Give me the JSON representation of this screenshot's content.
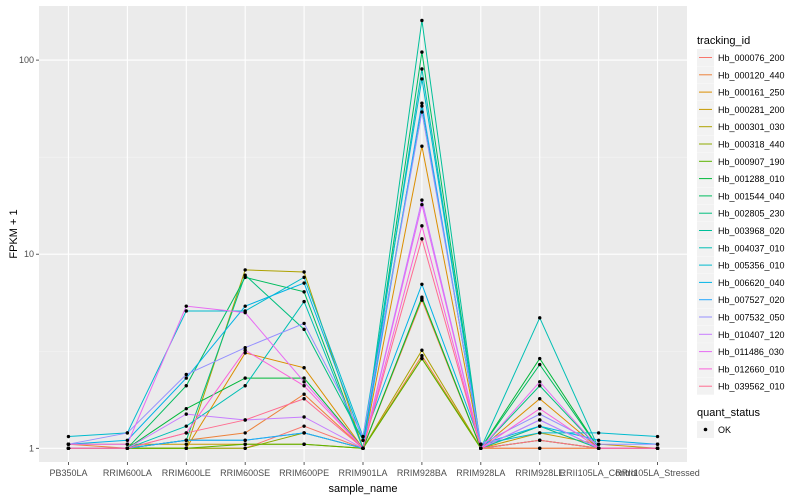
{
  "chart_data": {
    "type": "line",
    "xlabel": "sample_name",
    "ylabel": "FPKM + 1",
    "y_scale": "log10",
    "ylim": [
      0.85,
      190
    ],
    "y_ticks": [
      1,
      10,
      100
    ],
    "y_tick_labels": [
      "1",
      "10",
      "100"
    ],
    "grid": true,
    "legend_position": "right",
    "categories": [
      "PB350LA",
      "RRIM600LA",
      "RRIM600LE",
      "RRIM600SE",
      "RRIM600PE",
      "RRIM901LA",
      "RRIM928BA",
      "RRIM928LA",
      "RRIM928LE",
      "RRII105LA_Control",
      "RRII105LA_Stressed"
    ],
    "series": [
      {
        "name": "Hb_000076_200",
        "color": "#F8766D",
        "values": [
          1.0,
          1.0,
          1.0,
          1.0,
          1.3,
          1.0,
          5.8,
          1.0,
          1.0,
          1.0,
          1.0
        ]
      },
      {
        "name": "Hb_000120_440",
        "color": "#EC823C",
        "values": [
          1.05,
          1.0,
          1.1,
          1.2,
          1.9,
          1.0,
          3.0,
          1.0,
          1.0,
          1.0,
          1.0
        ]
      },
      {
        "name": "Hb_000161_250",
        "color": "#DB8E00",
        "values": [
          1.0,
          1.0,
          1.0,
          3.1,
          2.6,
          1.0,
          36.0,
          1.0,
          1.8,
          1.0,
          1.0
        ]
      },
      {
        "name": "Hb_000281_200",
        "color": "#C59900",
        "values": [
          1.05,
          1.05,
          1.05,
          1.05,
          1.05,
          1.0,
          5.9,
          1.0,
          1.2,
          1.05,
          1.0
        ]
      },
      {
        "name": "Hb_000301_030",
        "color": "#AEA200",
        "values": [
          1.0,
          1.0,
          1.0,
          8.3,
          8.1,
          1.0,
          3.2,
          1.0,
          1.3,
          1.0,
          1.0
        ]
      },
      {
        "name": "Hb_000318_440",
        "color": "#8DAA00",
        "values": [
          1.0,
          1.0,
          1.0,
          1.0,
          1.2,
          1.0,
          2.9,
          1.0,
          1.1,
          1.0,
          1.0
        ]
      },
      {
        "name": "Hb_000907_190",
        "color": "#5BB300",
        "values": [
          1.0,
          1.0,
          1.0,
          1.05,
          1.05,
          1.0,
          2.9,
          1.0,
          1.1,
          1.0,
          1.0
        ]
      },
      {
        "name": "Hb_001288_010",
        "color": "#00B83A",
        "values": [
          1.0,
          1.0,
          1.6,
          2.3,
          2.3,
          1.0,
          6.0,
          1.0,
          2.9,
          1.0,
          1.0
        ]
      },
      {
        "name": "Hb_001544_040",
        "color": "#00BC5E",
        "values": [
          1.0,
          1.0,
          2.1,
          7.6,
          6.4,
          1.0,
          110.0,
          1.0,
          2.7,
          1.0,
          1.0
        ]
      },
      {
        "name": "Hb_002805_230",
        "color": "#00BF7D",
        "values": [
          1.0,
          1.0,
          1.1,
          7.8,
          4.1,
          1.1,
          58.0,
          1.0,
          2.1,
          1.0,
          1.0
        ]
      },
      {
        "name": "Hb_003968_020",
        "color": "#00C09A",
        "values": [
          1.0,
          1.0,
          1.1,
          1.1,
          1.2,
          1.0,
          160.0,
          1.0,
          1.3,
          1.0,
          1.0
        ]
      },
      {
        "name": "Hb_004037_010",
        "color": "#00BFB4",
        "values": [
          1.0,
          1.0,
          1.3,
          2.1,
          5.7,
          1.0,
          90.0,
          1.0,
          4.7,
          1.0,
          1.0
        ]
      },
      {
        "name": "Hb_005356_010",
        "color": "#00BBCE",
        "values": [
          1.15,
          1.2,
          5.1,
          5.1,
          7.6,
          1.15,
          80.0,
          1.05,
          1.2,
          1.2,
          1.15
        ]
      },
      {
        "name": "Hb_006620_040",
        "color": "#00B3E6",
        "values": [
          1.05,
          1.1,
          2.3,
          5.4,
          7.1,
          1.1,
          7.0,
          1.05,
          1.3,
          1.1,
          1.05
        ]
      },
      {
        "name": "Hb_007527_020",
        "color": "#24A7FF",
        "values": [
          1.0,
          1.0,
          1.1,
          1.1,
          1.2,
          1.0,
          60.0,
          1.0,
          1.4,
          1.0,
          1.0
        ]
      },
      {
        "name": "Hb_007532_050",
        "color": "#9590FF",
        "values": [
          1.05,
          1.2,
          2.4,
          3.3,
          4.4,
          1.15,
          54.0,
          1.05,
          1.5,
          1.05,
          1.05
        ]
      },
      {
        "name": "Hb_010407_120",
        "color": "#C77CFF",
        "values": [
          1.0,
          1.0,
          1.5,
          1.4,
          1.45,
          1.0,
          19.0,
          1.0,
          1.4,
          1.0,
          1.0
        ]
      },
      {
        "name": "Hb_011486_030",
        "color": "#E76BF3",
        "values": [
          1.05,
          1.05,
          5.4,
          5.0,
          2.2,
          1.0,
          18.0,
          1.0,
          2.2,
          1.0,
          1.0
        ]
      },
      {
        "name": "Hb_012660_010",
        "color": "#FA62DB",
        "values": [
          1.0,
          1.0,
          1.2,
          3.2,
          2.1,
          1.0,
          14.0,
          1.0,
          1.6,
          1.0,
          1.0
        ]
      },
      {
        "name": "Hb_039562_010",
        "color": "#FF6C90",
        "values": [
          1.0,
          1.0,
          1.2,
          1.4,
          1.8,
          1.0,
          12.0,
          1.0,
          1.1,
          1.0,
          1.0
        ]
      }
    ]
  },
  "legend": {
    "title": "tracking_id"
  },
  "status_legend": {
    "title": "quant_status",
    "items": [
      {
        "label": "OK",
        "color": "#000000"
      }
    ]
  }
}
